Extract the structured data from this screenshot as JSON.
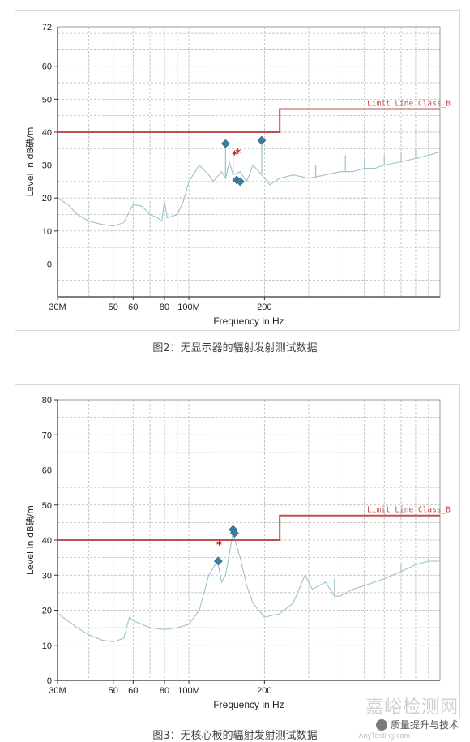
{
  "colors": {
    "limit": "#c0504d",
    "trace": "#9cc3cc",
    "diamond": "#3a7fa0",
    "star": "#b02020",
    "grid": "#b8b8b8"
  },
  "chart_data": [
    {
      "type": "line",
      "caption": "图2：无显示器的辐射发射测试数据",
      "xlabel": "Frequency in Hz",
      "ylabel": "Level in dB碘/m",
      "x_scale": "log",
      "xlim": [
        30,
        1000
      ],
      "ylim": [
        -10,
        72
      ],
      "y_ticks": [
        0,
        10,
        20,
        30,
        40,
        50,
        60
      ],
      "y_top_label": "72",
      "x_ticks": [
        {
          "value": 30,
          "label": "30M"
        },
        {
          "value": 50,
          "label": "50"
        },
        {
          "value": 60,
          "label": "60"
        },
        {
          "value": 80,
          "label": "80"
        },
        {
          "value": 100,
          "label": "100M"
        },
        {
          "value": 200,
          "label": "200"
        }
      ],
      "limit_line": {
        "label": "Limit Line Class_B",
        "points": [
          [
            30,
            40
          ],
          [
            230,
            40
          ],
          [
            230,
            47
          ],
          [
            1000,
            47
          ]
        ]
      },
      "trace": [
        [
          30,
          20
        ],
        [
          33,
          18
        ],
        [
          36,
          15
        ],
        [
          40,
          13
        ],
        [
          45,
          12
        ],
        [
          50,
          11.5
        ],
        [
          55,
          12.5
        ],
        [
          60,
          18
        ],
        [
          65,
          17.5
        ],
        [
          70,
          15
        ],
        [
          75,
          14
        ],
        [
          78,
          13
        ],
        [
          80,
          19
        ],
        [
          82,
          14
        ],
        [
          90,
          15
        ],
        [
          95,
          19
        ],
        [
          100,
          25
        ],
        [
          110,
          30
        ],
        [
          120,
          27
        ],
        [
          125,
          25
        ],
        [
          135,
          28
        ],
        [
          140,
          26
        ],
        [
          145,
          31
        ],
        [
          150,
          27
        ],
        [
          160,
          28
        ],
        [
          170,
          25
        ],
        [
          180,
          30
        ],
        [
          195,
          27
        ],
        [
          210,
          24
        ],
        [
          230,
          26
        ],
        [
          260,
          27
        ],
        [
          300,
          26
        ],
        [
          350,
          27
        ],
        [
          400,
          28
        ],
        [
          450,
          28
        ],
        [
          500,
          29
        ],
        [
          550,
          29
        ],
        [
          600,
          30
        ],
        [
          700,
          31
        ],
        [
          800,
          32
        ],
        [
          900,
          33
        ],
        [
          1000,
          34
        ]
      ],
      "spikes": [
        [
          140,
          37
        ],
        [
          150,
          34
        ],
        [
          195,
          37
        ],
        [
          320,
          30
        ],
        [
          420,
          33
        ],
        [
          500,
          32
        ],
        [
          600,
          33
        ],
        [
          700,
          34
        ],
        [
          800,
          35
        ]
      ],
      "diamonds": [
        [
          140,
          36.5
        ],
        [
          155,
          25.5
        ],
        [
          160,
          25
        ],
        [
          195,
          37.5
        ]
      ],
      "stars": [
        [
          152,
          33
        ],
        [
          157,
          33.5
        ]
      ]
    },
    {
      "type": "line",
      "caption": "图3：无核心板的辐射发射测试数据",
      "xlabel": "Frequency in Hz",
      "ylabel": "Level in dB碘/m",
      "x_scale": "log",
      "xlim": [
        30,
        1000
      ],
      "ylim": [
        0,
        80
      ],
      "y_ticks": [
        0,
        10,
        20,
        30,
        40,
        50,
        60,
        70,
        80
      ],
      "x_ticks": [
        {
          "value": 30,
          "label": "30M"
        },
        {
          "value": 50,
          "label": "50"
        },
        {
          "value": 60,
          "label": "60"
        },
        {
          "value": 80,
          "label": "80"
        },
        {
          "value": 100,
          "label": "100M"
        },
        {
          "value": 200,
          "label": "200"
        }
      ],
      "limit_line": {
        "label": "Limit Line Class_B",
        "points": [
          [
            30,
            40
          ],
          [
            230,
            40
          ],
          [
            230,
            47
          ],
          [
            1000,
            47
          ]
        ]
      },
      "trace": [
        [
          30,
          19
        ],
        [
          33,
          17
        ],
        [
          36,
          15
        ],
        [
          40,
          13
        ],
        [
          45,
          11.5
        ],
        [
          50,
          11
        ],
        [
          55,
          12
        ],
        [
          58,
          18
        ],
        [
          60,
          17
        ],
        [
          65,
          16
        ],
        [
          70,
          15
        ],
        [
          80,
          14.5
        ],
        [
          90,
          15
        ],
        [
          100,
          16
        ],
        [
          110,
          20
        ],
        [
          120,
          30
        ],
        [
          130,
          34
        ],
        [
          135,
          28
        ],
        [
          140,
          30
        ],
        [
          150,
          42
        ],
        [
          160,
          35
        ],
        [
          170,
          27
        ],
        [
          180,
          22
        ],
        [
          200,
          18
        ],
        [
          230,
          19
        ],
        [
          260,
          22
        ],
        [
          290,
          30
        ],
        [
          310,
          26
        ],
        [
          350,
          28
        ],
        [
          380,
          24
        ],
        [
          400,
          24
        ],
        [
          450,
          26
        ],
        [
          500,
          27
        ],
        [
          600,
          29
        ],
        [
          700,
          31
        ],
        [
          800,
          33
        ],
        [
          900,
          34
        ],
        [
          1000,
          34
        ]
      ],
      "spikes": [
        [
          128,
          36
        ],
        [
          150,
          43
        ],
        [
          290,
          30
        ],
        [
          380,
          29
        ],
        [
          700,
          33
        ],
        [
          900,
          35
        ]
      ],
      "diamonds": [
        [
          131,
          34
        ],
        [
          150,
          43
        ],
        [
          152,
          42
        ]
      ],
      "stars": [
        [
          132,
          38.5
        ]
      ]
    }
  ],
  "watermark": {
    "title": "嘉峪检测网",
    "subtitle": "AnyTesting.com",
    "brand": "质量提升与技术"
  }
}
